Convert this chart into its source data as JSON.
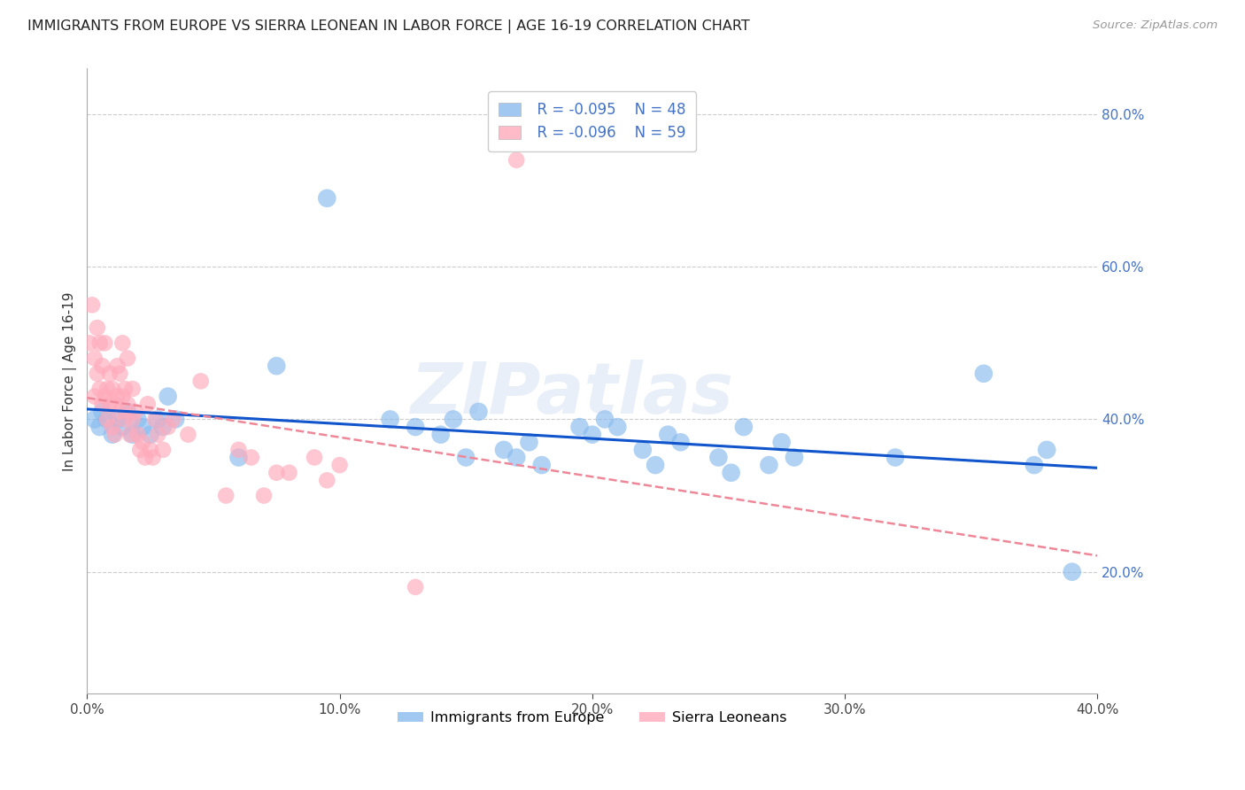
{
  "title": "IMMIGRANTS FROM EUROPE VS SIERRA LEONEAN IN LABOR FORCE | AGE 16-19 CORRELATION CHART",
  "source": "Source: ZipAtlas.com",
  "ylabel": "In Labor Force | Age 16-19",
  "xlim": [
    0.0,
    0.4
  ],
  "ylim": [
    0.04,
    0.86
  ],
  "right_yticks": [
    0.2,
    0.4,
    0.6,
    0.8
  ],
  "right_yticklabels": [
    "20.0%",
    "40.0%",
    "60.0%",
    "80.0%"
  ],
  "xticks": [
    0.0,
    0.1,
    0.2,
    0.3,
    0.4
  ],
  "xticklabels": [
    "0.0%",
    "10.0%",
    "20.0%",
    "30.0%",
    "40.0%"
  ],
  "legend_blue_label": "Immigrants from Europe",
  "legend_pink_label": "Sierra Leoneans",
  "legend_R_blue": "R = -0.095",
  "legend_N_blue": "N = 48",
  "legend_R_pink": "R = -0.096",
  "legend_N_pink": "N = 59",
  "blue_color": "#88bbee",
  "pink_color": "#ffaabb",
  "trend_blue_color": "#1155cc",
  "trend_pink_color": "#ee8899",
  "watermark": "ZIPatlas",
  "grid_color": "#cccccc",
  "blue_scatter_x": [
    0.003,
    0.005,
    0.006,
    0.008,
    0.01,
    0.012,
    0.014,
    0.016,
    0.018,
    0.02,
    0.022,
    0.025,
    0.028,
    0.03,
    0.032,
    0.035,
    0.06,
    0.075,
    0.095,
    0.12,
    0.13,
    0.14,
    0.145,
    0.15,
    0.155,
    0.165,
    0.17,
    0.175,
    0.18,
    0.195,
    0.2,
    0.205,
    0.21,
    0.22,
    0.225,
    0.23,
    0.235,
    0.25,
    0.255,
    0.26,
    0.27,
    0.275,
    0.28,
    0.32,
    0.355,
    0.375,
    0.38,
    0.39
  ],
  "blue_scatter_y": [
    0.4,
    0.39,
    0.41,
    0.4,
    0.38,
    0.4,
    0.39,
    0.41,
    0.38,
    0.4,
    0.39,
    0.38,
    0.4,
    0.39,
    0.43,
    0.4,
    0.35,
    0.47,
    0.69,
    0.4,
    0.39,
    0.38,
    0.4,
    0.35,
    0.41,
    0.36,
    0.35,
    0.37,
    0.34,
    0.39,
    0.38,
    0.4,
    0.39,
    0.36,
    0.34,
    0.38,
    0.37,
    0.35,
    0.33,
    0.39,
    0.34,
    0.37,
    0.35,
    0.35,
    0.46,
    0.34,
    0.36,
    0.2
  ],
  "pink_scatter_x": [
    0.001,
    0.002,
    0.003,
    0.003,
    0.004,
    0.004,
    0.005,
    0.005,
    0.006,
    0.006,
    0.007,
    0.007,
    0.008,
    0.008,
    0.009,
    0.009,
    0.01,
    0.01,
    0.011,
    0.011,
    0.012,
    0.012,
    0.013,
    0.013,
    0.014,
    0.014,
    0.015,
    0.015,
    0.016,
    0.016,
    0.017,
    0.018,
    0.018,
    0.019,
    0.02,
    0.021,
    0.022,
    0.023,
    0.024,
    0.025,
    0.026,
    0.027,
    0.028,
    0.03,
    0.032,
    0.034,
    0.04,
    0.045,
    0.055,
    0.06,
    0.065,
    0.07,
    0.075,
    0.08,
    0.09,
    0.095,
    0.1,
    0.13,
    0.17
  ],
  "pink_scatter_y": [
    0.5,
    0.55,
    0.48,
    0.43,
    0.46,
    0.52,
    0.44,
    0.5,
    0.42,
    0.47,
    0.43,
    0.5,
    0.44,
    0.4,
    0.42,
    0.46,
    0.39,
    0.44,
    0.38,
    0.42,
    0.47,
    0.43,
    0.46,
    0.41,
    0.43,
    0.5,
    0.4,
    0.44,
    0.42,
    0.48,
    0.38,
    0.44,
    0.4,
    0.41,
    0.38,
    0.36,
    0.37,
    0.35,
    0.42,
    0.36,
    0.35,
    0.4,
    0.38,
    0.36,
    0.39,
    0.4,
    0.38,
    0.45,
    0.3,
    0.36,
    0.35,
    0.3,
    0.33,
    0.33,
    0.35,
    0.32,
    0.34,
    0.18,
    0.74
  ]
}
